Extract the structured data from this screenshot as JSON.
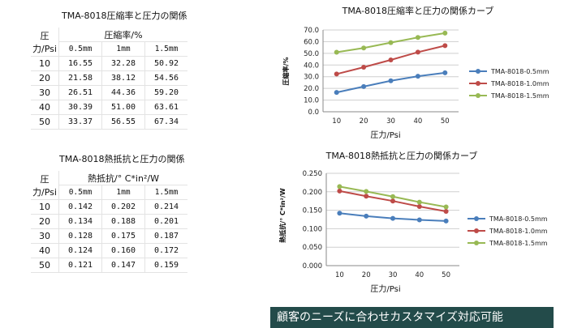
{
  "tables": [
    {
      "title": "TMA-8018圧縮率と圧力の関係",
      "pressure_header": "圧力/Psi",
      "group_header": "圧縮率/%",
      "columns": [
        "0.5mm",
        "1mm",
        "1.5mm"
      ],
      "rows": [
        {
          "p": "10",
          "v": [
            "16.55",
            "32.28",
            "50.92"
          ]
        },
        {
          "p": "20",
          "v": [
            "21.58",
            "38.12",
            "54.56"
          ]
        },
        {
          "p": "30",
          "v": [
            "26.51",
            "44.36",
            "59.20"
          ]
        },
        {
          "p": "40",
          "v": [
            "30.39",
            "51.00",
            "63.61"
          ]
        },
        {
          "p": "50",
          "v": [
            "33.37",
            "56.55",
            "67.34"
          ]
        }
      ]
    },
    {
      "title": "TMA-8018熱抵抗と圧力の関係",
      "pressure_header": "圧力/Psi",
      "group_header": "熱抵抗/° C*in²/W",
      "columns": [
        "0.5mm",
        "1mm",
        "1.5mm"
      ],
      "rows": [
        {
          "p": "10",
          "v": [
            "0.142",
            "0.202",
            "0.214"
          ]
        },
        {
          "p": "20",
          "v": [
            "0.134",
            "0.188",
            "0.201"
          ]
        },
        {
          "p": "30",
          "v": [
            "0.128",
            "0.175",
            "0.187"
          ]
        },
        {
          "p": "40",
          "v": [
            "0.124",
            "0.160",
            "0.172"
          ]
        },
        {
          "p": "50",
          "v": [
            "0.121",
            "0.147",
            "0.159"
          ]
        }
      ]
    }
  ],
  "chart_data": [
    {
      "type": "line",
      "title": "TMA-8018圧縮率と圧力の関係カーブ",
      "xlabel": "圧力/Psi",
      "ylabel": "圧縮率/%",
      "x": [
        10,
        20,
        30,
        40,
        50
      ],
      "ylim": [
        0,
        70
      ],
      "yticks": [
        0,
        10,
        20,
        30,
        40,
        50,
        60,
        70
      ],
      "ytick_labels": [
        "0.0",
        "10.0",
        "20.0",
        "30.0",
        "40.0",
        "50.0",
        "60.0",
        "70.0"
      ],
      "grid": true,
      "legend": "right",
      "series": [
        {
          "name": "TMA-8018-0.5mm",
          "color": "#4a7ebb",
          "values": [
            16.55,
            21.58,
            26.51,
            30.39,
            33.37
          ]
        },
        {
          "name": "TMA-8018-1.0mm",
          "color": "#be4b48",
          "values": [
            32.28,
            38.12,
            44.36,
            51.0,
            56.55
          ]
        },
        {
          "name": "TMA-8018-1.5mm",
          "color": "#98b954",
          "values": [
            50.92,
            54.56,
            59.2,
            63.61,
            67.34
          ]
        }
      ]
    },
    {
      "type": "line",
      "title": "TMA-8018熱抵抗と圧力の関係カーブ",
      "xlabel": "圧力/Psi",
      "ylabel": "熱抵抗/° C*in²/W",
      "x": [
        10,
        20,
        30,
        40,
        50
      ],
      "ylim": [
        0,
        0.25
      ],
      "yticks": [
        0,
        0.05,
        0.1,
        0.15,
        0.2,
        0.25
      ],
      "ytick_labels": [
        "0.000",
        "0.050",
        "0.100",
        "0.150",
        "0.200",
        "0.250"
      ],
      "grid": true,
      "legend": "right",
      "series": [
        {
          "name": "TMA-8018-0.5mm",
          "color": "#4a7ebb",
          "values": [
            0.142,
            0.134,
            0.128,
            0.124,
            0.121
          ]
        },
        {
          "name": "TMA-8018-1.0mm",
          "color": "#be4b48",
          "values": [
            0.202,
            0.188,
            0.175,
            0.16,
            0.147
          ]
        },
        {
          "name": "TMA-8018-1.5mm",
          "color": "#98b954",
          "values": [
            0.214,
            0.201,
            0.187,
            0.172,
            0.159
          ]
        }
      ]
    }
  ],
  "banner": {
    "text": "顧客のニーズに合わせカスタマイズ対応可能"
  }
}
